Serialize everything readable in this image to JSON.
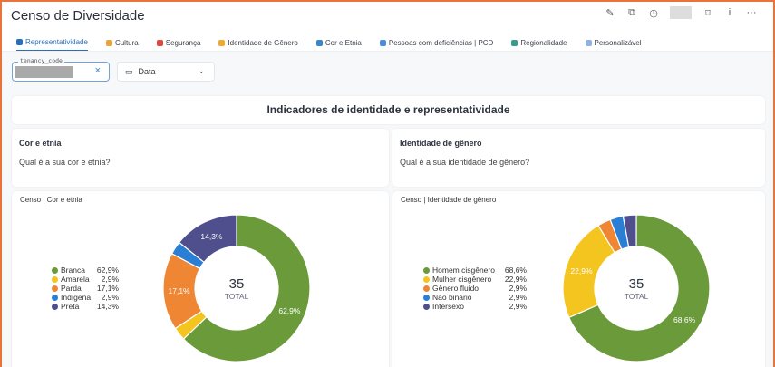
{
  "header": {
    "title": "Censo de Diversidade",
    "actions": [
      "pencil-icon",
      "external-link-icon",
      "clock-icon",
      "bookmark-icon",
      "info-icon",
      "more-icon"
    ]
  },
  "tabs": [
    {
      "label": "Representatividade",
      "color": "#2a6fbd"
    },
    {
      "label": "Cultura",
      "color": "#e9a43b"
    },
    {
      "label": "Segurança",
      "color": "#e0483e"
    },
    {
      "label": "Identidade de Gênero",
      "color": "#f0a92a"
    },
    {
      "label": "Cor e Etnia",
      "color": "#3a86c8"
    },
    {
      "label": "Pessoas com deficiências | PCD",
      "color": "#4a8ee0"
    },
    {
      "label": "Regionalidade",
      "color": "#3a9b8a"
    },
    {
      "label": "Personalizável",
      "color": "#8fb2e0"
    }
  ],
  "filters": {
    "tenancy_label": "tenancy_code",
    "date_label": "Data"
  },
  "section_title": "Indicadores de identidade e representatividade",
  "questions": [
    {
      "title": "Cor e etnia",
      "text": "Qual é a sua cor e etnia?"
    },
    {
      "title": "Identidade de gênero",
      "text": "Qual é a sua identidade de gênero?"
    }
  ],
  "chart_data": [
    {
      "type": "pie",
      "title": "Censo | Cor e etnia",
      "total": "35",
      "total_label": "TOTAL",
      "categories": [
        "Branca",
        "Amarela",
        "Parda",
        "Indígena",
        "Preta"
      ],
      "values": [
        62.9,
        2.9,
        17.1,
        2.9,
        14.3
      ],
      "labels": [
        "62,9%",
        "2,9%",
        "17,1%",
        "2,9%",
        "14,3%"
      ],
      "colors": [
        "#6a9a3a",
        "#f4c41f",
        "#ee8634",
        "#2a7fd4",
        "#4f4f8e"
      ],
      "legend": "left"
    },
    {
      "type": "pie",
      "title": "Censo | Identidade de gênero",
      "total": "35",
      "total_label": "TOTAL",
      "categories": [
        "Homem cisgênero",
        "Mulher cisgênero",
        "Gênero fluido",
        "Não binário",
        "Intersexo"
      ],
      "values": [
        68.6,
        22.9,
        2.9,
        2.9,
        2.9
      ],
      "labels": [
        "68,6%",
        "22,9%",
        "2,9%",
        "2,9%",
        "2,9%"
      ],
      "colors": [
        "#6a9a3a",
        "#f4c41f",
        "#ee8634",
        "#2a7fd4",
        "#4f4f8e"
      ],
      "legend": "left"
    }
  ]
}
